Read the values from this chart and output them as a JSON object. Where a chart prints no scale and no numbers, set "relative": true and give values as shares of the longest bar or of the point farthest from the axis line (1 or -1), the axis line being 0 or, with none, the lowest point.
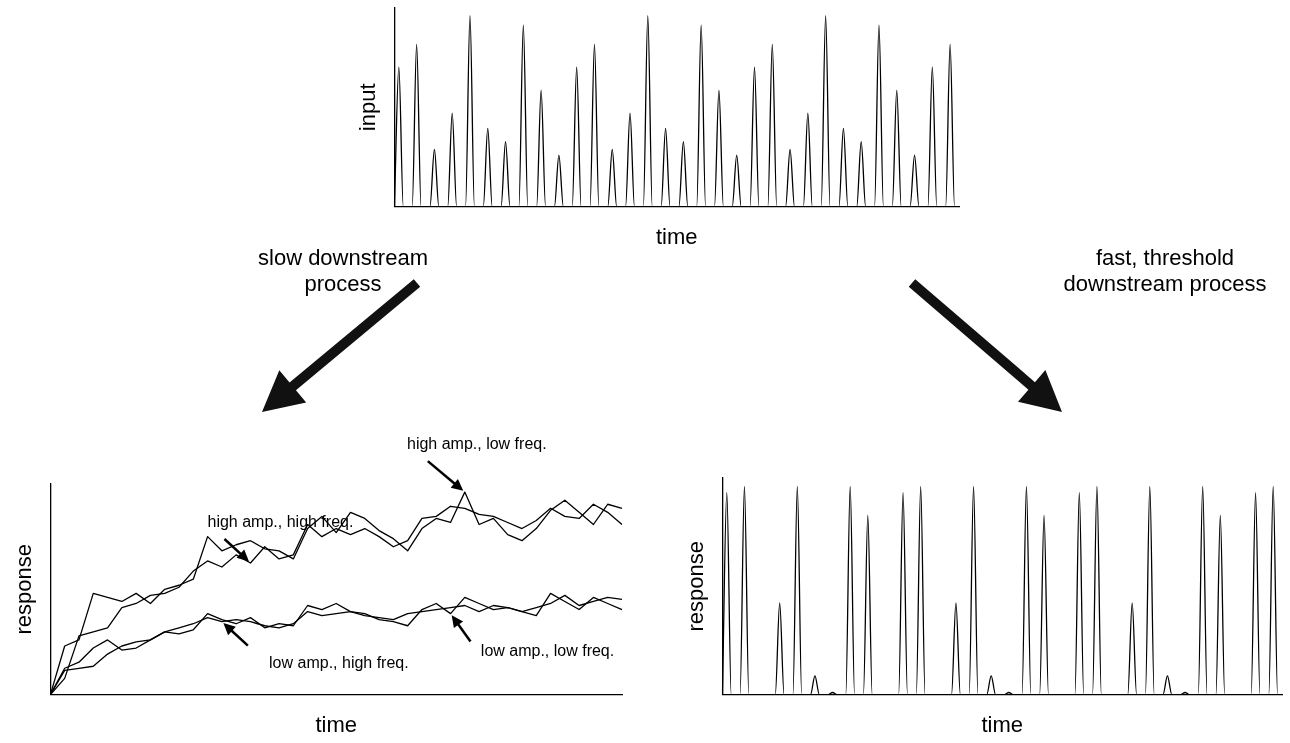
{
  "chart_data": [
    {
      "type": "line",
      "relative": true,
      "xlabel": "time",
      "ylabel": "input",
      "color": "#000000",
      "categories": [
        null,
        null,
        null,
        null,
        null,
        null,
        null,
        null,
        null,
        null,
        null,
        null,
        null,
        null,
        null,
        null,
        null,
        null,
        null,
        null,
        null,
        null,
        null,
        null,
        null,
        null,
        null,
        null,
        null,
        null,
        null,
        null,
        null,
        null,
        null,
        null,
        null,
        null,
        null,
        null,
        null,
        null,
        null,
        null,
        null,
        null,
        null,
        null,
        null,
        null,
        null,
        null,
        null,
        null,
        null,
        null,
        null,
        null,
        null,
        null,
        null,
        null,
        null,
        null,
        null,
        null,
        null,
        null,
        null,
        null,
        null,
        null,
        null,
        null,
        null,
        null,
        null,
        null,
        null,
        null,
        null,
        null,
        null,
        null,
        null,
        null,
        null,
        null,
        null,
        null,
        null,
        null,
        null,
        null,
        null,
        null,
        null,
        null,
        null,
        null,
        null,
        null,
        null,
        null,
        null,
        null,
        null,
        null,
        null,
        null,
        null,
        null,
        null,
        null,
        null,
        null,
        null,
        null,
        null,
        null,
        null,
        null,
        null,
        null,
        null,
        null,
        null,
        null
      ],
      "values": [
        0,
        0.73,
        0,
        0,
        0,
        0.85,
        0,
        0,
        0,
        0.3,
        0,
        0,
        0,
        0.49,
        0,
        0,
        0,
        1,
        0,
        0,
        0,
        0.41,
        0,
        0,
        0,
        0.34,
        0,
        0,
        0,
        0.95,
        0,
        0,
        0,
        0.61,
        0,
        0,
        0,
        0.27,
        0,
        0,
        0,
        0.73,
        0,
        0,
        0,
        0.85,
        0,
        0,
        0,
        0.3,
        0,
        0,
        0,
        0.49,
        0,
        0,
        0,
        1,
        0,
        0,
        0,
        0.41,
        0,
        0,
        0,
        0.34,
        0,
        0,
        0,
        0.95,
        0,
        0,
        0,
        0.61,
        0,
        0,
        0,
        0.27,
        0,
        0,
        0,
        0.73,
        0,
        0,
        0,
        0.85,
        0,
        0,
        0,
        0.3,
        0,
        0,
        0,
        0.49,
        0,
        0,
        0,
        1,
        0,
        0,
        0,
        0.41,
        0,
        0,
        0,
        0.34,
        0,
        0,
        0,
        0.95,
        0,
        0,
        0,
        0.61,
        0,
        0,
        0,
        0.27,
        0,
        0,
        0,
        0.73,
        0,
        0,
        0,
        0.85,
        0,
        0
      ]
    },
    {
      "type": "line",
      "relative": true,
      "title": "slow downstream process",
      "xlabel": "time",
      "ylabel": "response",
      "categories": [
        null,
        null,
        null,
        null,
        null,
        null,
        null,
        null,
        null,
        null,
        null,
        null,
        null,
        null,
        null,
        null,
        null,
        null,
        null,
        null,
        null,
        null,
        null,
        null,
        null,
        null,
        null,
        null,
        null,
        null,
        null,
        null,
        null,
        null,
        null,
        null,
        null,
        null,
        null,
        null,
        null
      ],
      "series": [
        {
          "name": "high amp., low freq.",
          "color": "#000000",
          "values": [
            0,
            0.24,
            0.27,
            0.5,
            0.48,
            0.46,
            0.5,
            0.45,
            0.52,
            0.54,
            0.57,
            0.78,
            0.71,
            0.74,
            0.76,
            0.72,
            0.71,
            0.67,
            0.82,
            0.88,
            0.8,
            0.9,
            0.87,
            0.81,
            0.77,
            0.71,
            0.82,
            0.87,
            0.85,
            1,
            0.84,
            0.87,
            0.79,
            0.76,
            0.82,
            0.91,
            0.96,
            0.9,
            0.84,
            0.94,
            0.92
          ]
        },
        {
          "name": "high amp., high freq.",
          "color": "#000000",
          "values": [
            0,
            0.08,
            0.29,
            0.31,
            0.33,
            0.43,
            0.45,
            0.49,
            0.5,
            0.53,
            0.61,
            0.66,
            0.63,
            0.69,
            0.65,
            0.73,
            0.67,
            0.69,
            0.84,
            0.78,
            0.82,
            0.79,
            0.82,
            0.78,
            0.73,
            0.76,
            0.87,
            0.88,
            0.93,
            0.92,
            0.89,
            0.88,
            0.85,
            0.82,
            0.86,
            0.92,
            0.88,
            0.87,
            0.94,
            0.9,
            0.84
          ]
        },
        {
          "name": "low amp., high freq.",
          "color": "#000000",
          "values": [
            0,
            0.12,
            0.13,
            0.14,
            0.2,
            0.24,
            0.26,
            0.27,
            0.31,
            0.33,
            0.35,
            0.38,
            0.36,
            0.37,
            0.36,
            0.34,
            0.33,
            0.35,
            0.41,
            0.39,
            0.4,
            0.41,
            0.39,
            0.38,
            0.37,
            0.4,
            0.41,
            0.42,
            0.43,
            0.44,
            0.41,
            0.44,
            0.43,
            0.41,
            0.43,
            0.45,
            0.49,
            0.44,
            0.46,
            0.48,
            0.47
          ]
        },
        {
          "name": "low amp., low freq.",
          "color": "#000000",
          "values": [
            0,
            0.13,
            0.16,
            0.23,
            0.27,
            0.22,
            0.23,
            0.27,
            0.31,
            0.3,
            0.32,
            0.4,
            0.37,
            0.35,
            0.38,
            0.33,
            0.35,
            0.34,
            0.44,
            0.42,
            0.45,
            0.41,
            0.4,
            0.37,
            0.36,
            0.34,
            0.42,
            0.45,
            0.4,
            0.48,
            0.45,
            0.42,
            0.43,
            0.41,
            0.39,
            0.5,
            0.46,
            0.42,
            0.48,
            0.45,
            0.42
          ]
        }
      ]
    },
    {
      "type": "line",
      "relative": true,
      "title": "fast, threshold downstream process",
      "xlabel": "time",
      "ylabel": "response",
      "color": "#000000",
      "categories": [
        null,
        null,
        null,
        null,
        null,
        null,
        null,
        null,
        null,
        null,
        null,
        null,
        null,
        null,
        null,
        null,
        null,
        null,
        null,
        null,
        null,
        null,
        null,
        null,
        null,
        null,
        null,
        null,
        null,
        null,
        null,
        null,
        null,
        null,
        null,
        null,
        null,
        null,
        null,
        null,
        null,
        null,
        null,
        null,
        null,
        null,
        null,
        null,
        null,
        null,
        null,
        null,
        null,
        null,
        null,
        null,
        null,
        null,
        null,
        null,
        null,
        null,
        null,
        null,
        null,
        null,
        null,
        null,
        null,
        null,
        null,
        null,
        null,
        null,
        null,
        null,
        null,
        null,
        null,
        null,
        null,
        null,
        null,
        null,
        null,
        null,
        null,
        null,
        null,
        null,
        null,
        null,
        null,
        null,
        null,
        null,
        null,
        null,
        null,
        null,
        null,
        null,
        null,
        null,
        null,
        null,
        null,
        null,
        null,
        null,
        null,
        null,
        null,
        null,
        null,
        null,
        null,
        null,
        null,
        null,
        null,
        null,
        null,
        null,
        null,
        null,
        null,
        null
      ],
      "values": [
        0,
        0.97,
        0,
        0,
        0,
        1,
        0,
        0,
        0,
        0,
        0,
        0,
        0,
        0.44,
        0,
        0,
        0,
        1,
        0,
        0,
        0,
        0.09,
        0,
        0,
        0,
        0.01,
        0,
        0,
        0,
        1,
        0,
        0,
        0,
        0.86,
        0,
        0,
        0,
        0,
        0,
        0,
        0,
        0.97,
        0,
        0,
        0,
        1,
        0,
        0,
        0,
        0,
        0,
        0,
        0,
        0.44,
        0,
        0,
        0,
        1,
        0,
        0,
        0,
        0.09,
        0,
        0,
        0,
        0.01,
        0,
        0,
        0,
        1,
        0,
        0,
        0,
        0.86,
        0,
        0,
        0,
        0,
        0,
        0,
        0,
        0.97,
        0,
        0,
        0,
        1,
        0,
        0,
        0,
        0,
        0,
        0,
        0,
        0.44,
        0,
        0,
        0,
        1,
        0,
        0,
        0,
        0.09,
        0,
        0,
        0,
        0.01,
        0,
        0,
        0,
        1,
        0,
        0,
        0,
        0.86,
        0,
        0,
        0,
        0,
        0,
        0,
        0,
        0.97,
        0,
        0,
        0,
        1,
        0,
        0
      ]
    }
  ]
}
